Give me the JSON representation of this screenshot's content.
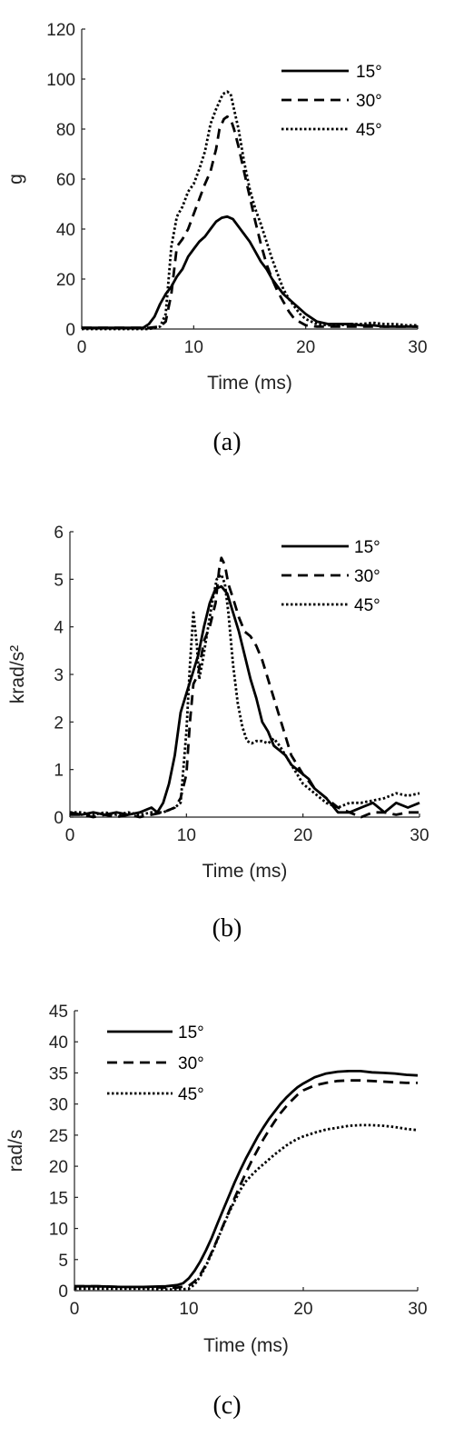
{
  "chart_data": [
    {
      "type": "line",
      "caption": "(a)",
      "xlabel": "Time (ms)",
      "ylabel": "g",
      "xlim": [
        0,
        30
      ],
      "ylim": [
        0,
        120
      ],
      "xticks": [
        0,
        10,
        20,
        30
      ],
      "yticks": [
        0,
        20,
        40,
        60,
        80,
        100,
        120
      ],
      "legend_position": "top-right",
      "series": [
        {
          "name": "15°",
          "style": "solid",
          "x": [
            0,
            2,
            4,
            5.5,
            6,
            6.5,
            7,
            7.5,
            8,
            8.5,
            9,
            9.5,
            10,
            10.5,
            11,
            11.5,
            12,
            12.5,
            13,
            13.5,
            14,
            14.5,
            15,
            15.5,
            16,
            16.5,
            17,
            17.5,
            18,
            18.5,
            19,
            19.5,
            20,
            21,
            22,
            23,
            24,
            25,
            26,
            27,
            28,
            29,
            30
          ],
          "y": [
            0.5,
            0.5,
            0.5,
            0.5,
            2,
            5,
            10,
            14,
            17,
            21,
            24,
            29,
            32,
            35,
            37,
            40,
            43,
            44.5,
            45,
            44,
            41,
            38,
            35,
            31,
            27,
            24,
            20,
            17,
            14,
            12,
            10,
            8,
            6,
            3,
            2,
            2,
            2,
            1.5,
            1.5,
            1,
            1,
            1,
            1
          ]
        },
        {
          "name": "30°",
          "style": "dashed",
          "x": [
            0,
            2,
            4,
            6,
            7,
            7.5,
            8,
            8.5,
            9,
            9.5,
            10,
            10.5,
            11,
            11.5,
            12,
            12.3,
            12.7,
            13,
            13.3,
            13.6,
            14,
            14.5,
            15,
            15.5,
            16,
            16.5,
            17,
            17.5,
            18,
            18.5,
            19,
            20,
            21,
            22,
            23,
            24,
            25,
            26,
            27,
            28,
            29,
            30
          ],
          "y": [
            0.5,
            0.5,
            0.5,
            0.5,
            1,
            3,
            14,
            33,
            36,
            40,
            46,
            52,
            58,
            63,
            72,
            80,
            84,
            85,
            84,
            80,
            73,
            63,
            53,
            43,
            34,
            26,
            20,
            15,
            11,
            7,
            4,
            1.5,
            1,
            1,
            1,
            1,
            1,
            1,
            1,
            1,
            1,
            1
          ]
        },
        {
          "name": "45°",
          "style": "dotted",
          "x": [
            0,
            2,
            4,
            6,
            7,
            7.5,
            8,
            8.5,
            9,
            9.5,
            10,
            10.5,
            11,
            11.5,
            12,
            12.3,
            12.6,
            13,
            13.3,
            13.6,
            14,
            14.5,
            15,
            15.5,
            16,
            16.5,
            17,
            17.5,
            18,
            18.5,
            19,
            19.5,
            20,
            21,
            22,
            23,
            24,
            25,
            26,
            27,
            28,
            29,
            30
          ],
          "y": [
            0,
            0,
            0,
            0,
            1,
            6,
            33,
            45,
            49,
            55,
            58,
            64,
            71,
            82,
            88,
            91,
            94,
            95,
            94,
            88,
            80,
            67,
            56,
            48,
            42,
            35,
            28,
            22,
            16,
            12,
            9,
            6,
            4,
            2,
            1.5,
            1.5,
            2,
            2,
            2.5,
            2,
            2,
            1.5,
            1.5
          ]
        }
      ]
    },
    {
      "type": "line",
      "caption": "(b)",
      "xlabel": "Time (ms)",
      "ylabel": "krad/s²",
      "xlim": [
        0,
        30
      ],
      "ylim": [
        0,
        6
      ],
      "xticks": [
        0,
        10,
        20,
        30
      ],
      "yticks": [
        0,
        1,
        2,
        3,
        4,
        5,
        6
      ],
      "legend_position": "top-right",
      "series": [
        {
          "name": "15°",
          "style": "solid",
          "x": [
            0,
            1,
            2,
            3,
            4,
            5,
            6,
            7,
            7.5,
            8,
            8.5,
            9,
            9.5,
            10,
            10.5,
            11,
            11.5,
            12,
            12.5,
            13,
            13.5,
            14,
            14.5,
            15,
            15.5,
            16,
            16.5,
            17,
            17.5,
            18,
            18.5,
            19,
            19.5,
            20,
            20.5,
            21,
            21.5,
            22,
            22.5,
            23,
            24,
            25,
            26,
            27,
            28,
            29,
            30
          ],
          "y": [
            0.1,
            0.05,
            0.1,
            0.05,
            0.1,
            0.05,
            0.1,
            0.2,
            0.1,
            0.3,
            0.7,
            1.3,
            2.2,
            2.6,
            3.0,
            3.4,
            4.0,
            4.5,
            4.8,
            4.85,
            4.7,
            4.3,
            3.9,
            3.4,
            2.9,
            2.5,
            2.0,
            1.8,
            1.5,
            1.4,
            1.3,
            1.1,
            1.0,
            0.9,
            0.8,
            0.6,
            0.5,
            0.4,
            0.25,
            0.1,
            0.1,
            0.2,
            0.3,
            0.1,
            0.3,
            0.2,
            0.3
          ]
        },
        {
          "name": "30°",
          "style": "dashed",
          "x": [
            0,
            1,
            2,
            3,
            4,
            5,
            6,
            7,
            8,
            9,
            9.5,
            10,
            10.3,
            10.6,
            11,
            11.5,
            12,
            12.5,
            12.8,
            13,
            13.3,
            13.6,
            14,
            14.5,
            15,
            15.5,
            16,
            16.5,
            17,
            17.5,
            18,
            18.5,
            19,
            19.5,
            20,
            21,
            22,
            23,
            24,
            25,
            26,
            27,
            28,
            29,
            30
          ],
          "y": [
            0.05,
            0.05,
            0,
            0.05,
            0,
            0.05,
            0,
            0.05,
            0.1,
            0.2,
            0.4,
            0.9,
            2.0,
            2.8,
            3.0,
            3.7,
            4.0,
            4.5,
            5.2,
            5.45,
            5.3,
            4.9,
            4.6,
            4.2,
            3.9,
            3.8,
            3.6,
            3.3,
            2.9,
            2.5,
            2.1,
            1.7,
            1.3,
            1.1,
            0.9,
            0.6,
            0.4,
            0.2,
            0.1,
            0,
            0.1,
            0.1,
            0.05,
            0.1,
            0.1
          ]
        },
        {
          "name": "45°",
          "style": "dotted",
          "x": [
            0,
            1,
            2,
            3,
            4,
            5,
            6,
            7,
            8,
            9,
            9.5,
            10,
            10.3,
            10.6,
            10.9,
            11.1,
            11.4,
            11.8,
            12.2,
            12.6,
            13,
            13.3,
            13.6,
            14,
            14.4,
            14.8,
            15.2,
            15.6,
            16,
            16.5,
            17,
            17.5,
            18,
            18.5,
            19,
            19.5,
            20,
            21,
            22,
            23,
            24,
            25,
            26,
            27,
            28,
            29,
            30
          ],
          "y": [
            0.1,
            0.1,
            0.05,
            0.1,
            0.05,
            0.1,
            0.05,
            0.1,
            0.1,
            0.2,
            0.3,
            1.8,
            3.2,
            4.3,
            3.6,
            2.9,
            3.3,
            3.9,
            4.5,
            5.0,
            5.1,
            4.9,
            4.3,
            3.2,
            2.4,
            1.9,
            1.6,
            1.55,
            1.6,
            1.6,
            1.55,
            1.65,
            1.5,
            1.3,
            1.1,
            0.9,
            0.7,
            0.5,
            0.3,
            0.2,
            0.3,
            0.3,
            0.35,
            0.4,
            0.5,
            0.45,
            0.5
          ]
        }
      ]
    },
    {
      "type": "line",
      "caption": "(c)",
      "xlabel": "Time (ms)",
      "ylabel": "rad/s",
      "xlim": [
        0,
        30
      ],
      "ylim": [
        0,
        45
      ],
      "xticks": [
        0,
        10,
        20,
        30
      ],
      "yticks": [
        0,
        5,
        10,
        15,
        20,
        25,
        30,
        35,
        40,
        45
      ],
      "legend_position": "top-left",
      "series": [
        {
          "name": "15°",
          "style": "solid",
          "x": [
            0,
            2,
            4,
            6,
            8,
            9,
            9.5,
            10,
            10.5,
            11,
            11.5,
            12,
            12.5,
            13,
            13.5,
            14,
            14.5,
            15,
            15.5,
            16,
            16.5,
            17,
            17.5,
            18,
            18.5,
            19,
            19.5,
            20,
            21,
            22,
            23,
            24,
            25,
            26,
            27,
            28,
            29,
            30
          ],
          "y": [
            0.7,
            0.7,
            0.6,
            0.6,
            0.7,
            0.9,
            1.2,
            2.0,
            3.2,
            4.7,
            6.5,
            8.5,
            10.8,
            13.0,
            15.2,
            17.4,
            19.4,
            21.3,
            23.0,
            24.7,
            26.2,
            27.6,
            28.8,
            30.0,
            31.0,
            31.9,
            32.7,
            33.3,
            34.3,
            34.9,
            35.2,
            35.3,
            35.3,
            35.1,
            35.0,
            34.9,
            34.7,
            34.6
          ]
        },
        {
          "name": "30°",
          "style": "dashed",
          "x": [
            0,
            2,
            4,
            6,
            8,
            9,
            10,
            10.5,
            11,
            11.5,
            12,
            12.5,
            13,
            13.5,
            14,
            14.5,
            15,
            15.5,
            16,
            16.5,
            17,
            17.5,
            18,
            18.5,
            19,
            19.5,
            20,
            21,
            22,
            23,
            24,
            25,
            26,
            27,
            28,
            29,
            30
          ],
          "y": [
            0.7,
            0.7,
            0.6,
            0.6,
            0.5,
            0.5,
            0.8,
            1.5,
            2.6,
            4.2,
            6.2,
            8.3,
            10.5,
            12.7,
            14.9,
            17.0,
            19.0,
            20.9,
            22.6,
            24.3,
            25.8,
            27.2,
            28.5,
            29.6,
            30.6,
            31.5,
            32.2,
            33.0,
            33.4,
            33.7,
            33.8,
            33.8,
            33.7,
            33.6,
            33.5,
            33.4,
            33.4
          ]
        },
        {
          "name": "45°",
          "style": "dotted",
          "x": [
            0,
            2,
            4,
            6,
            8,
            9,
            10,
            10.5,
            11,
            11.5,
            12,
            12.5,
            13,
            13.5,
            14,
            14.5,
            15,
            15.5,
            16,
            16.5,
            17,
            17.5,
            18,
            18.5,
            19,
            19.5,
            20,
            21,
            22,
            23,
            24,
            25,
            26,
            27,
            28,
            29,
            30
          ],
          "y": [
            0.3,
            0.3,
            0.3,
            0.3,
            0.2,
            0.2,
            0.3,
            1.0,
            2.3,
            4.0,
            6.0,
            8.2,
            10.4,
            12.5,
            14.4,
            16.2,
            17.6,
            18.6,
            19.5,
            20.3,
            21.1,
            21.9,
            22.6,
            23.3,
            23.9,
            24.4,
            24.8,
            25.4,
            25.9,
            26.2,
            26.5,
            26.6,
            26.6,
            26.5,
            26.3,
            26.0,
            25.8
          ]
        }
      ]
    }
  ]
}
